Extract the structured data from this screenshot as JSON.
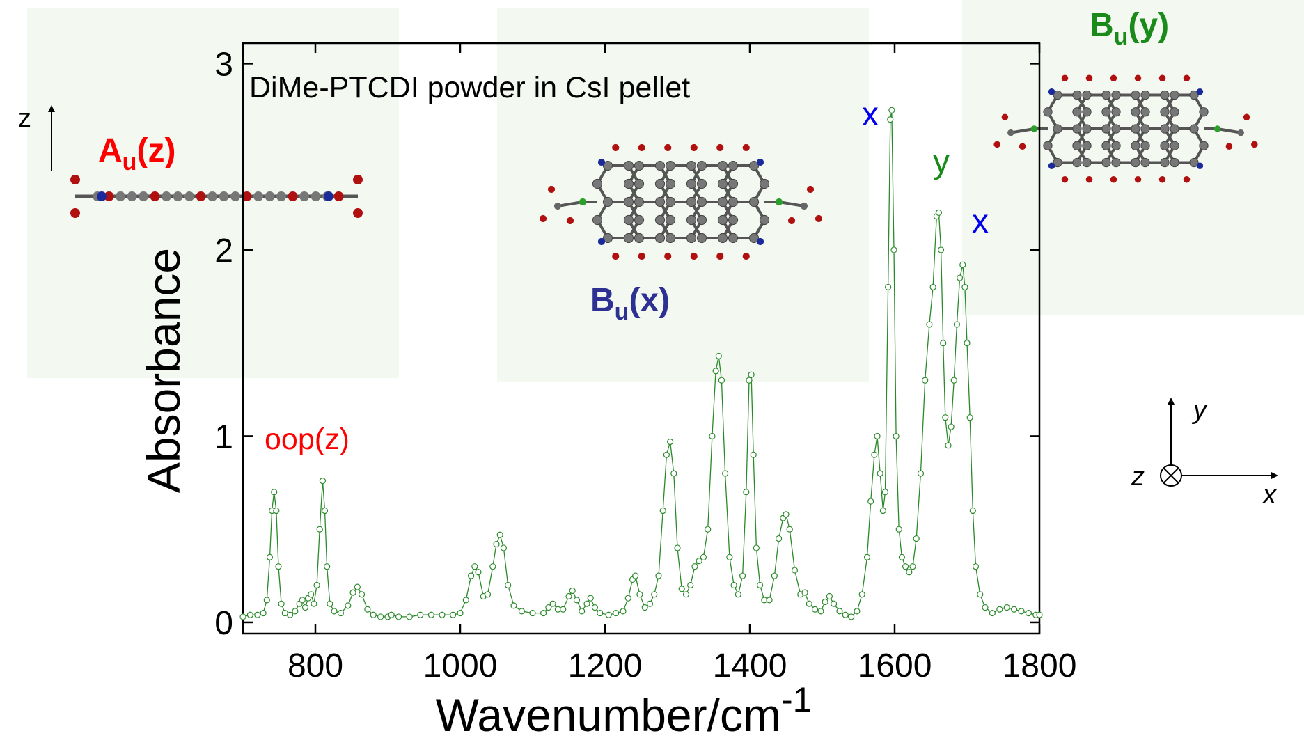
{
  "chart_data": {
    "type": "line",
    "xlabel": {
      "text": "Wavenumber/cm",
      "sup": "-1"
    },
    "ylabel": "Absorbance",
    "xlim": [
      700,
      1800
    ],
    "ylim": [
      -0.06,
      3.11
    ],
    "xticks": [
      800,
      1000,
      1200,
      1400,
      1600,
      1800
    ],
    "yticks": [
      0,
      1,
      2,
      3
    ],
    "color": "#2a8a2a",
    "x": [
      700,
      710,
      720,
      728,
      733,
      737,
      740,
      743,
      746,
      749,
      753,
      758,
      765,
      772,
      778,
      782,
      786,
      790,
      794,
      798,
      802,
      806,
      810,
      813,
      816,
      820,
      826,
      835,
      845,
      852,
      858,
      864,
      872,
      880,
      890,
      900,
      905,
      915,
      930,
      945,
      960,
      975,
      990,
      1000,
      1008,
      1015,
      1020,
      1025,
      1032,
      1038,
      1045,
      1050,
      1055,
      1060,
      1066,
      1074,
      1085,
      1100,
      1115,
      1122,
      1128,
      1135,
      1142,
      1150,
      1155,
      1161,
      1168,
      1175,
      1180,
      1186,
      1193,
      1205,
      1215,
      1225,
      1232,
      1238,
      1242,
      1248,
      1255,
      1262,
      1268,
      1274,
      1280,
      1285,
      1290,
      1295,
      1300,
      1306,
      1312,
      1318,
      1324,
      1330,
      1336,
      1342,
      1348,
      1353,
      1357,
      1361,
      1366,
      1372,
      1378,
      1384,
      1390,
      1395,
      1399,
      1402,
      1405,
      1409,
      1414,
      1420,
      1427,
      1434,
      1440,
      1446,
      1450,
      1455,
      1462,
      1470,
      1476,
      1482,
      1490,
      1498,
      1504,
      1510,
      1516,
      1524,
      1532,
      1540,
      1548,
      1555,
      1562,
      1567,
      1572,
      1576,
      1580,
      1584,
      1587,
      1591,
      1594,
      1596,
      1599,
      1602,
      1606,
      1610,
      1615,
      1620,
      1625,
      1630,
      1636,
      1642,
      1648,
      1653,
      1658,
      1661,
      1664,
      1667,
      1670,
      1674,
      1678,
      1682,
      1686,
      1690,
      1694,
      1697,
      1700,
      1704,
      1708,
      1712,
      1718,
      1725,
      1735,
      1745,
      1755,
      1765,
      1775,
      1785,
      1795,
      1800
    ],
    "values": [
      0.03,
      0.04,
      0.04,
      0.05,
      0.12,
      0.35,
      0.6,
      0.7,
      0.6,
      0.3,
      0.1,
      0.05,
      0.04,
      0.06,
      0.1,
      0.12,
      0.08,
      0.13,
      0.15,
      0.1,
      0.2,
      0.5,
      0.76,
      0.6,
      0.3,
      0.1,
      0.06,
      0.05,
      0.09,
      0.16,
      0.19,
      0.15,
      0.07,
      0.04,
      0.03,
      0.03,
      0.04,
      0.03,
      0.03,
      0.04,
      0.04,
      0.04,
      0.04,
      0.05,
      0.12,
      0.25,
      0.3,
      0.27,
      0.14,
      0.15,
      0.3,
      0.42,
      0.47,
      0.4,
      0.2,
      0.09,
      0.06,
      0.05,
      0.05,
      0.08,
      0.1,
      0.07,
      0.07,
      0.14,
      0.17,
      0.12,
      0.06,
      0.1,
      0.13,
      0.08,
      0.05,
      0.04,
      0.05,
      0.06,
      0.13,
      0.23,
      0.25,
      0.15,
      0.08,
      0.1,
      0.15,
      0.25,
      0.6,
      0.9,
      0.97,
      0.8,
      0.4,
      0.18,
      0.15,
      0.2,
      0.3,
      0.33,
      0.35,
      0.5,
      1.0,
      1.35,
      1.43,
      1.3,
      0.8,
      0.35,
      0.2,
      0.15,
      0.25,
      0.7,
      1.3,
      1.33,
      0.9,
      0.4,
      0.2,
      0.12,
      0.12,
      0.25,
      0.45,
      0.56,
      0.58,
      0.5,
      0.28,
      0.15,
      0.16,
      0.1,
      0.07,
      0.06,
      0.11,
      0.14,
      0.1,
      0.06,
      0.04,
      0.03,
      0.06,
      0.15,
      0.35,
      0.65,
      0.9,
      1.0,
      0.8,
      0.6,
      0.7,
      1.8,
      2.7,
      2.75,
      2.0,
      1.0,
      0.5,
      0.35,
      0.3,
      0.27,
      0.3,
      0.45,
      0.8,
      1.3,
      1.6,
      1.8,
      2.18,
      2.2,
      2.0,
      1.5,
      1.1,
      0.95,
      1.05,
      1.3,
      1.6,
      1.85,
      1.92,
      1.8,
      1.5,
      1.1,
      0.6,
      0.3,
      0.15,
      0.08,
      0.05,
      0.07,
      0.08,
      0.07,
      0.06,
      0.05,
      0.04,
      0.04
    ],
    "annotations": [
      {
        "text": "DiMe-PTCDI powder in CsI pellet",
        "color": "#000000"
      },
      {
        "text": "oop(z)",
        "color": "#ff0000"
      },
      {
        "text": "x",
        "color": "#0000ee"
      },
      {
        "text": "y",
        "color": "#1a8a1a"
      },
      {
        "text": "x",
        "color": "#0000ee"
      }
    ],
    "mode_labels": [
      {
        "base": "A",
        "sub": "u",
        "suffix": "(z)",
        "color": "#ff0000"
      },
      {
        "base": "B",
        "sub": "u",
        "suffix": "(x)",
        "color": "#2e3192"
      },
      {
        "base": "B",
        "sub": "u",
        "suffix": "(y)",
        "color": "#1a8a1a"
      }
    ],
    "axis_indicators": [
      "z",
      "z",
      "y",
      "x"
    ]
  }
}
